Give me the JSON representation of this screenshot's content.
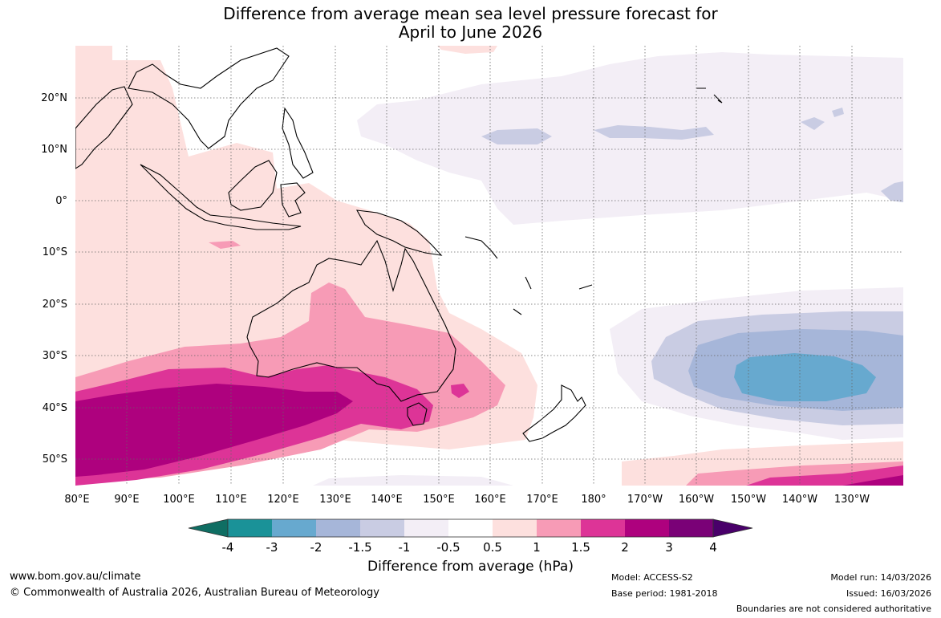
{
  "title": {
    "line1": "Difference from average mean sea level pressure forecast for",
    "line2": "April to June 2026"
  },
  "map": {
    "lat_labels": [
      "20°N",
      "10°N",
      "0°",
      "10°S",
      "20°S",
      "30°S",
      "40°S",
      "50°S"
    ],
    "lon_labels": [
      "80°E",
      "90°E",
      "100°E",
      "110°E",
      "120°E",
      "130°E",
      "140°E",
      "150°E",
      "160°E",
      "170°E",
      "180°",
      "170°W",
      "160°W",
      "150°W",
      "140°W",
      "130°W"
    ]
  },
  "colorbar": {
    "ticks": [
      "-4",
      "-3",
      "-2",
      "-1.5",
      "-1",
      "-0.5",
      "0.5",
      "1",
      "1.5",
      "2",
      "3",
      "4"
    ],
    "colors": [
      "#0f6e63",
      "#1a9298",
      "#67a9cf",
      "#a6b6d9",
      "#c9cce3",
      "#f3eef6",
      "#ffffff",
      "#fde0de",
      "#f79bb6",
      "#dd3497",
      "#ae017e",
      "#7a0177",
      "#49006a"
    ],
    "label": "Difference from average (hPa)"
  },
  "footer": {
    "website": "www.bom.gov.au/climate",
    "copyright": "© Commonwealth of Australia 2026, Australian Bureau of Meteorology",
    "model": "Model: ACCESS-S2",
    "base_period": "Base period: 1981-2018",
    "model_run": "Model run: 14/03/2026",
    "issued": "Issued: 16/03/2026",
    "disclaimer": "Boundaries are not considered authoritative"
  }
}
